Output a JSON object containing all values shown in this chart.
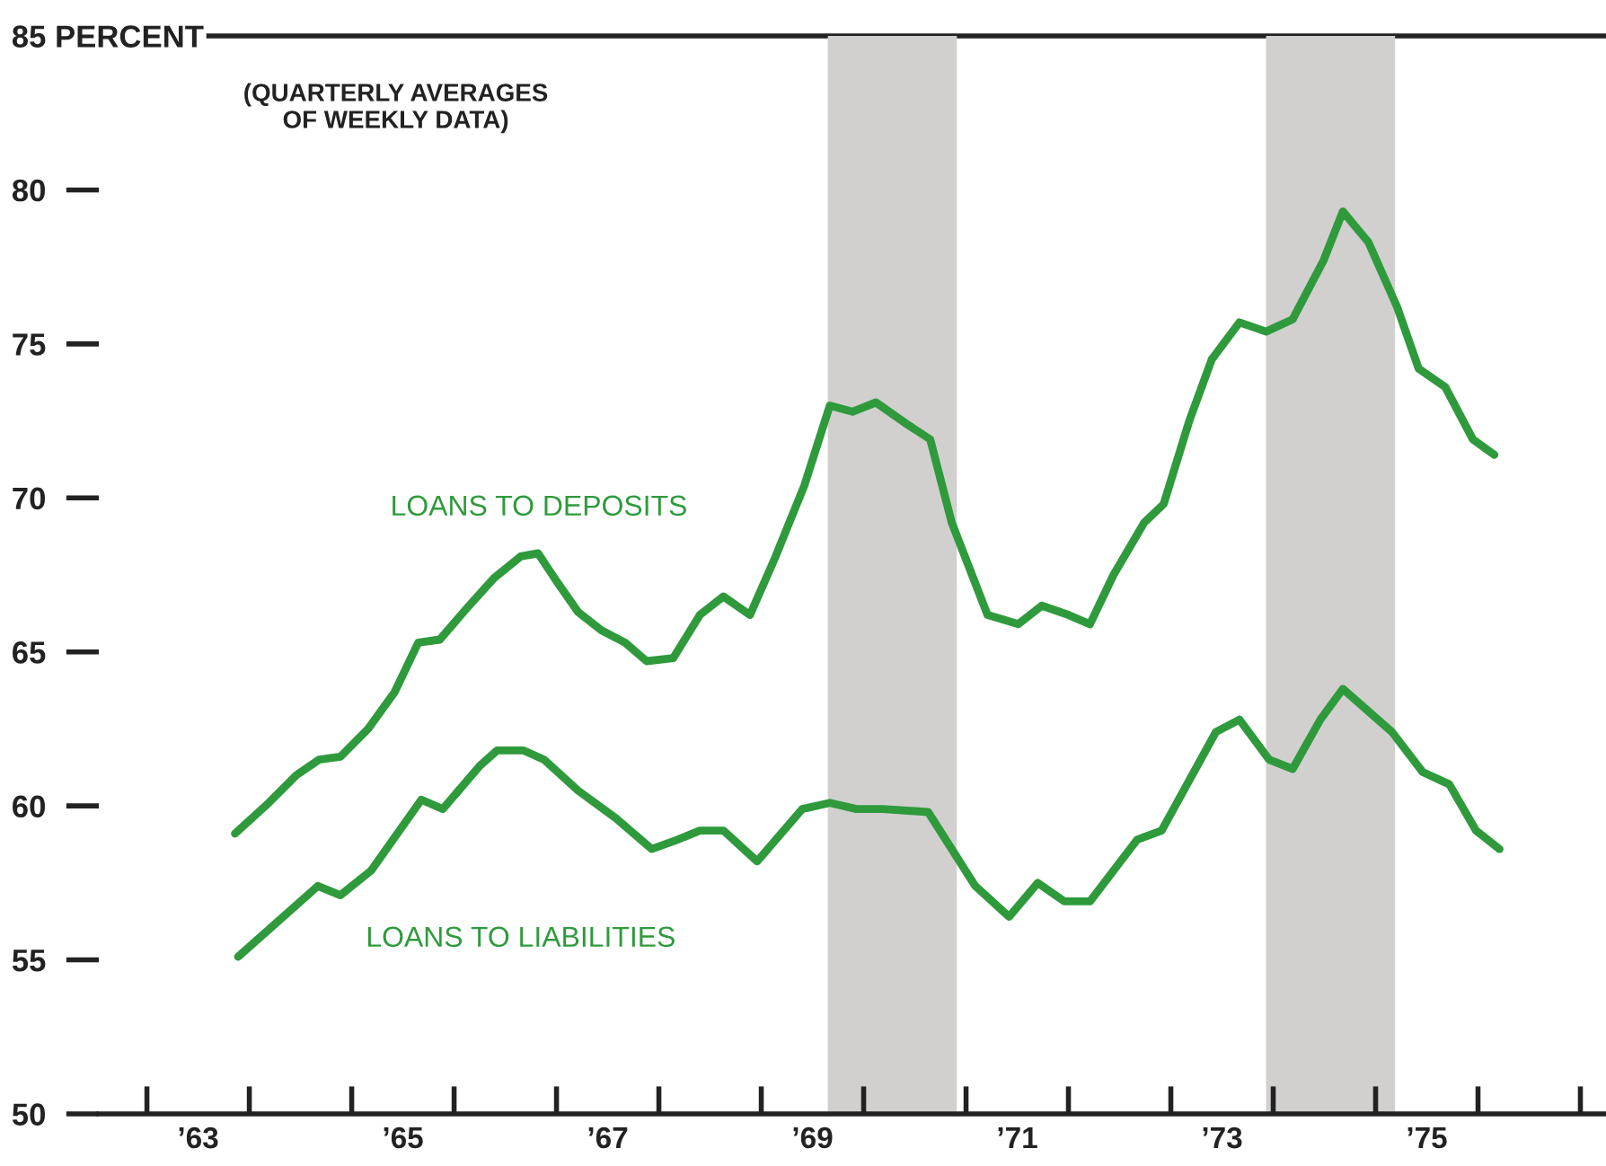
{
  "chart_data": {
    "type": "line",
    "annotations": [
      "(QUARTERLY AVERAGES\nOF WEEKLY DATA)"
    ],
    "series": [
      {
        "name": "LOANS TO DEPOSITS",
        "color": "#2f9a3c",
        "x": [
          1963.36,
          1963.69,
          1963.96,
          1964.18,
          1964.39,
          1964.66,
          1964.92,
          1965.15,
          1965.36,
          1965.62,
          1965.89,
          1966.15,
          1966.32,
          1966.5,
          1966.71,
          1966.94,
          1967.17,
          1967.38,
          1967.64,
          1967.9,
          1968.13,
          1968.39,
          1968.64,
          1968.92,
          1969.17,
          1969.39,
          1969.62,
          1969.92,
          1970.15,
          1970.36,
          1970.71,
          1971.01,
          1971.24,
          1971.5,
          1971.71,
          1971.94,
          1972.24,
          1972.43,
          1972.68,
          1972.9,
          1973.17,
          1973.43,
          1973.69,
          1973.99,
          1974.18,
          1974.43,
          1974.71,
          1974.92,
          1975.18,
          1975.45,
          1975.66
        ],
        "values": [
          59.1,
          60.1,
          61.0,
          61.5,
          61.6,
          62.5,
          63.7,
          65.3,
          65.4,
          66.4,
          67.4,
          68.1,
          68.2,
          67.3,
          66.3,
          65.7,
          65.3,
          64.7,
          64.8,
          66.2,
          66.8,
          66.2,
          68.1,
          70.4,
          73.0,
          72.8,
          73.1,
          72.4,
          71.9,
          69.2,
          66.2,
          65.9,
          66.5,
          66.2,
          65.9,
          67.5,
          69.2,
          69.8,
          72.5,
          74.5,
          75.7,
          75.4,
          75.8,
          77.7,
          79.3,
          78.3,
          76.2,
          74.2,
          73.6,
          71.9,
          71.4
        ]
      },
      {
        "name": "LOANS TO LIABILITIES",
        "color": "#2f9a3c",
        "x": [
          1963.39,
          1964.17,
          1964.39,
          1964.69,
          1965.18,
          1965.39,
          1965.75,
          1965.92,
          1966.18,
          1966.38,
          1966.71,
          1967.08,
          1967.43,
          1967.68,
          1967.9,
          1968.13,
          1968.46,
          1968.9,
          1969.17,
          1969.43,
          1969.69,
          1970.13,
          1970.59,
          1970.92,
          1971.2,
          1971.46,
          1971.71,
          1972.17,
          1972.41,
          1972.94,
          1973.17,
          1973.46,
          1973.69,
          1973.96,
          1974.18,
          1974.66,
          1974.96,
          1975.22,
          1975.48,
          1975.71
        ],
        "values": [
          55.1,
          57.4,
          57.1,
          57.9,
          60.2,
          59.9,
          61.3,
          61.8,
          61.8,
          61.5,
          60.5,
          59.6,
          58.6,
          58.9,
          59.2,
          59.2,
          58.2,
          59.9,
          60.1,
          59.9,
          59.9,
          59.8,
          57.4,
          56.4,
          57.5,
          56.9,
          56.9,
          58.9,
          59.2,
          62.4,
          62.8,
          61.5,
          61.2,
          62.8,
          63.8,
          62.4,
          61.1,
          60.7,
          59.2,
          58.6
        ]
      }
    ],
    "bands": [
      {
        "axis": "x",
        "from": 1969.15,
        "to": 1970.41,
        "color": "#d2d0cf"
      },
      {
        "axis": "x",
        "from": 1973.43,
        "to": 1974.69,
        "color": "#d2d0cf"
      }
    ],
    "xlim": [
      1962.03,
      1976.75
    ],
    "xticks": [
      {
        "value": 1962.5,
        "label": null
      },
      {
        "value": 1963,
        "label": "’63"
      },
      {
        "value": 1963.5,
        "label": null
      },
      {
        "value": 1964.5,
        "label": null
      },
      {
        "value": 1965,
        "label": "’65"
      },
      {
        "value": 1965.5,
        "label": null
      },
      {
        "value": 1966.5,
        "label": null
      },
      {
        "value": 1967,
        "label": "’67"
      },
      {
        "value": 1967.5,
        "label": null
      },
      {
        "value": 1968.5,
        "label": null
      },
      {
        "value": 1969,
        "label": "’69"
      },
      {
        "value": 1969.5,
        "label": null
      },
      {
        "value": 1970.5,
        "label": null
      },
      {
        "value": 1971,
        "label": "’71"
      },
      {
        "value": 1971.5,
        "label": null
      },
      {
        "value": 1972.5,
        "label": null
      },
      {
        "value": 1973,
        "label": "’73"
      },
      {
        "value": 1973.5,
        "label": null
      },
      {
        "value": 1974.5,
        "label": null
      },
      {
        "value": 1975,
        "label": "’75"
      },
      {
        "value": 1975.5,
        "label": null
      },
      {
        "value": 1976.5,
        "label": null
      }
    ],
    "ylim": [
      50,
      85
    ],
    "yticks": [
      50,
      55,
      60,
      65,
      70,
      75,
      80,
      {
        "value": 85,
        "label": "85 PERCENT"
      }
    ],
    "grid": false,
    "legend": false,
    "marker": "none",
    "line_style": "solid"
  }
}
